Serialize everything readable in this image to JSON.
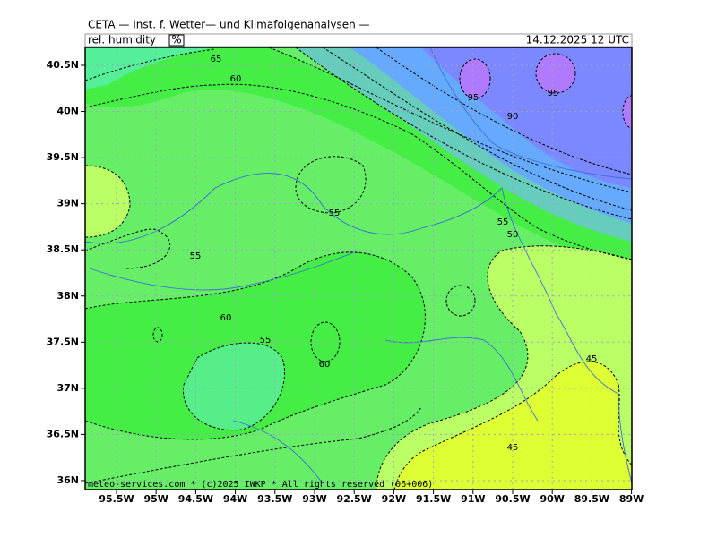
{
  "header": {
    "title": "CETA — Inst. f. Wetter— und Klimafolgenanalysen —",
    "variable": "rel. humidity",
    "unit": "%",
    "datetime": "14.12.2025  12 UTC"
  },
  "axes": {
    "x_labels": [
      "95.5W",
      "95W",
      "94.5W",
      "94W",
      "93.5W",
      "93W",
      "92.5W",
      "92W",
      "91.5W",
      "91W",
      "90.5W",
      "90W",
      "89.5W",
      "89W"
    ],
    "y_labels": [
      "40.5N",
      "40N",
      "39.5N",
      "39N",
      "38.5N",
      "38N",
      "37.5N",
      "37N",
      "36.5N",
      "36N"
    ]
  },
  "contour_labels": [
    "65",
    "60",
    "95",
    "95",
    "90",
    "55",
    "55",
    "50",
    "55",
    "60",
    "55",
    "60",
    "45",
    "45"
  ],
  "footer": {
    "credit": "meteo-services.com * (c)2025 IWKP * All rights reserved (06+006)"
  }
}
